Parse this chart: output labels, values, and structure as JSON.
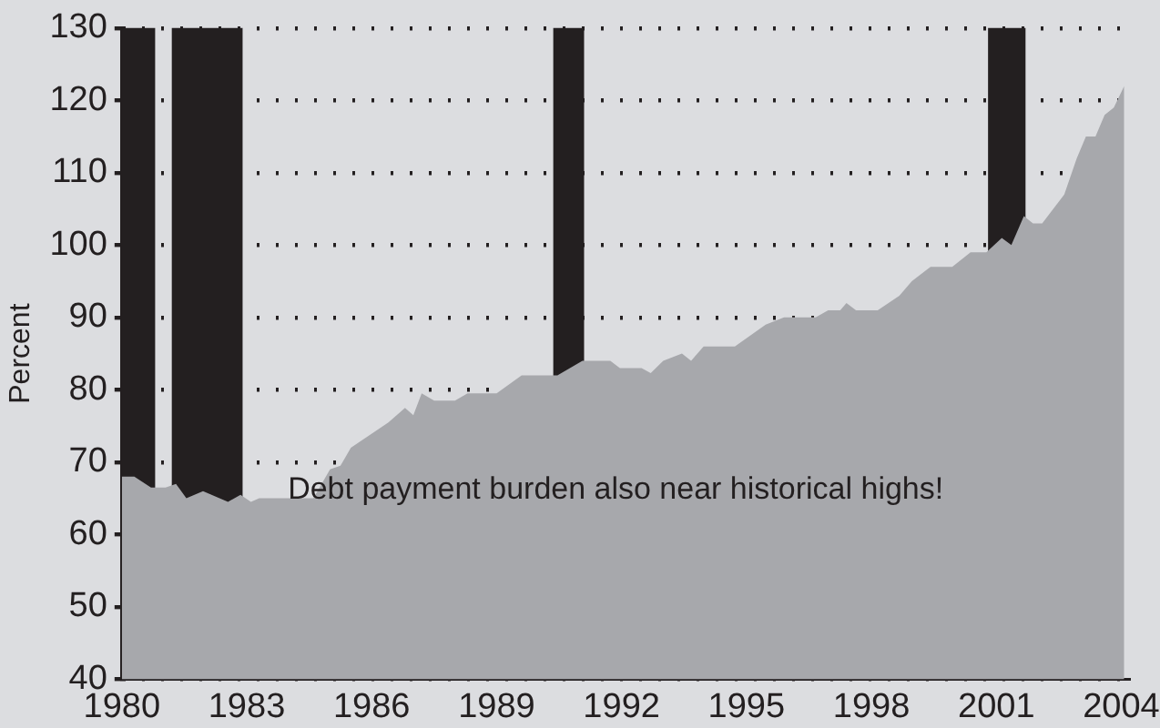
{
  "chart_data": {
    "type": "area",
    "ylabel": "Percent",
    "x": [
      1980.0,
      1980.3,
      1980.7,
      1981.05,
      1981.3,
      1981.55,
      1981.95,
      1982.55,
      1982.85,
      1983.1,
      1983.3,
      1984.6,
      1985.0,
      1985.25,
      1985.5,
      1986.4,
      1986.8,
      1987.0,
      1987.2,
      1987.5,
      1988.0,
      1988.3,
      1989.0,
      1989.6,
      1990.46,
      1991.06,
      1991.73,
      1991.96,
      1992.48,
      1992.7,
      1993.0,
      1993.45,
      1993.67,
      1993.97,
      1994.72,
      1995.46,
      1995.9,
      1996.66,
      1996.96,
      1997.25,
      1997.4,
      1997.63,
      1998.15,
      1998.67,
      1998.97,
      1999.42,
      1999.94,
      2000.38,
      2000.76,
      2001.13,
      2001.36,
      2001.66,
      2001.88,
      2002.1,
      2002.63,
      2002.93,
      2003.15,
      2003.38,
      2003.6,
      2003.82,
      2004.07
    ],
    "series": [
      {
        "color": "#a7a8ac",
        "values": [
          68,
          68,
          66.5,
          66.5,
          67,
          65,
          66,
          64.5,
          65.5,
          64.5,
          65,
          65,
          69,
          69.5,
          72,
          75.5,
          77.5,
          76.5,
          79.5,
          78.5,
          78.5,
          79.5,
          79.5,
          82,
          82,
          84,
          84,
          83,
          83,
          82.3,
          84,
          85,
          84,
          86,
          86,
          89,
          90,
          90,
          91,
          91,
          92,
          91,
          91,
          93,
          95,
          97,
          97,
          99,
          99,
          101,
          100,
          104,
          103,
          103,
          107,
          112,
          115,
          115,
          118,
          119,
          122
        ]
      }
    ],
    "xlim": [
      1980,
      2004.2
    ],
    "xticks": [
      1980,
      1983,
      1986,
      1989,
      1992,
      1995,
      1998,
      2001,
      2004
    ],
    "ylim": [
      40,
      130
    ],
    "yticks": [
      40,
      50,
      60,
      70,
      80,
      90,
      100,
      110,
      120,
      130
    ],
    "grid": "y",
    "line_style": "dotted",
    "legend": false,
    "bands": [
      {
        "axis": "x",
        "from": 1980.0,
        "to": 1980.8,
        "color": "#231f20"
      },
      {
        "axis": "x",
        "from": 1981.2,
        "to": 1982.9,
        "color": "#231f20"
      },
      {
        "axis": "x",
        "from": 1990.36,
        "to": 1991.1,
        "color": "#231f20"
      },
      {
        "axis": "x",
        "from": 2000.8,
        "to": 2001.7,
        "color": "#231f20"
      }
    ],
    "annotations": [
      "Debt payment burden also near historical highs!"
    ]
  }
}
